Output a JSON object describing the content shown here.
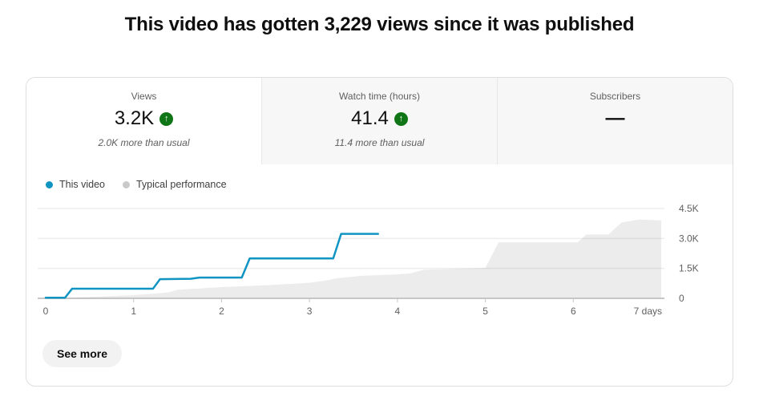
{
  "title": "This video has gotten 3,229 views since it was published",
  "icons": {
    "trend_up": "↑"
  },
  "colors": {
    "trend_badge_green": "#107516",
    "this_video_blue": "#1095c3",
    "typical_gray_area": "#ececec",
    "legend_gray_dot": "#c9c9c9",
    "axis_text": "#606060",
    "baseline": "#c6c6c6"
  },
  "tabs": [
    {
      "label": "Views",
      "value": "3.2K",
      "subtitle": "2.0K more than usual",
      "trend": "up"
    },
    {
      "label": "Watch time (hours)",
      "value": "41.4",
      "subtitle": "11.4 more than usual",
      "trend": "up"
    },
    {
      "label": "Subscribers",
      "value": "—",
      "subtitle": "",
      "trend": "none"
    }
  ],
  "legend": [
    {
      "label": "This video",
      "color": "#1095c3"
    },
    {
      "label": "Typical performance",
      "color": "#c9c9c9"
    }
  ],
  "see_more_label": "See more",
  "chart_data": {
    "type": "line",
    "title": "Views since published vs typical performance",
    "x_unit": "days",
    "x_range": [
      0,
      7
    ],
    "x_ticks": [
      "0",
      "1",
      "2",
      "3",
      "4",
      "5",
      "6",
      "7 days"
    ],
    "y_range": [
      0,
      4500
    ],
    "y_ticks": [
      {
        "label": "0",
        "value": 0
      },
      {
        "label": "1.5K",
        "value": 1500
      },
      {
        "label": "3.0K",
        "value": 3000
      },
      {
        "label": "4.5K",
        "value": 4500
      }
    ],
    "grid": true,
    "legend_position": "top-left",
    "series": [
      {
        "name": "Typical performance",
        "type": "area",
        "color": "#ececec",
        "points": [
          [
            0,
            0
          ],
          [
            0.5,
            70
          ],
          [
            1.0,
            160
          ],
          [
            1.3,
            260
          ],
          [
            1.4,
            300
          ],
          [
            1.5,
            430
          ],
          [
            2.0,
            560
          ],
          [
            2.3,
            620
          ],
          [
            2.6,
            680
          ],
          [
            3.0,
            780
          ],
          [
            3.2,
            900
          ],
          [
            3.3,
            1000
          ],
          [
            3.6,
            1130
          ],
          [
            4.0,
            1200
          ],
          [
            4.15,
            1250
          ],
          [
            4.3,
            1430
          ],
          [
            5.0,
            1520
          ],
          [
            5.15,
            2800
          ],
          [
            6.05,
            2800
          ],
          [
            6.15,
            3200
          ],
          [
            6.4,
            3200
          ],
          [
            6.55,
            3800
          ],
          [
            6.75,
            3950
          ],
          [
            7,
            3900
          ]
        ]
      },
      {
        "name": "This video",
        "type": "step_line",
        "color": "#1095c3",
        "final_value": 3229,
        "points": [
          [
            0,
            30
          ],
          [
            0.22,
            30
          ],
          [
            0.3,
            480
          ],
          [
            1.22,
            480
          ],
          [
            1.3,
            960
          ],
          [
            1.65,
            980
          ],
          [
            1.75,
            1040
          ],
          [
            2.23,
            1040
          ],
          [
            2.32,
            2000
          ],
          [
            3.27,
            2000
          ],
          [
            3.36,
            3230
          ],
          [
            3.78,
            3230
          ]
        ]
      }
    ]
  }
}
